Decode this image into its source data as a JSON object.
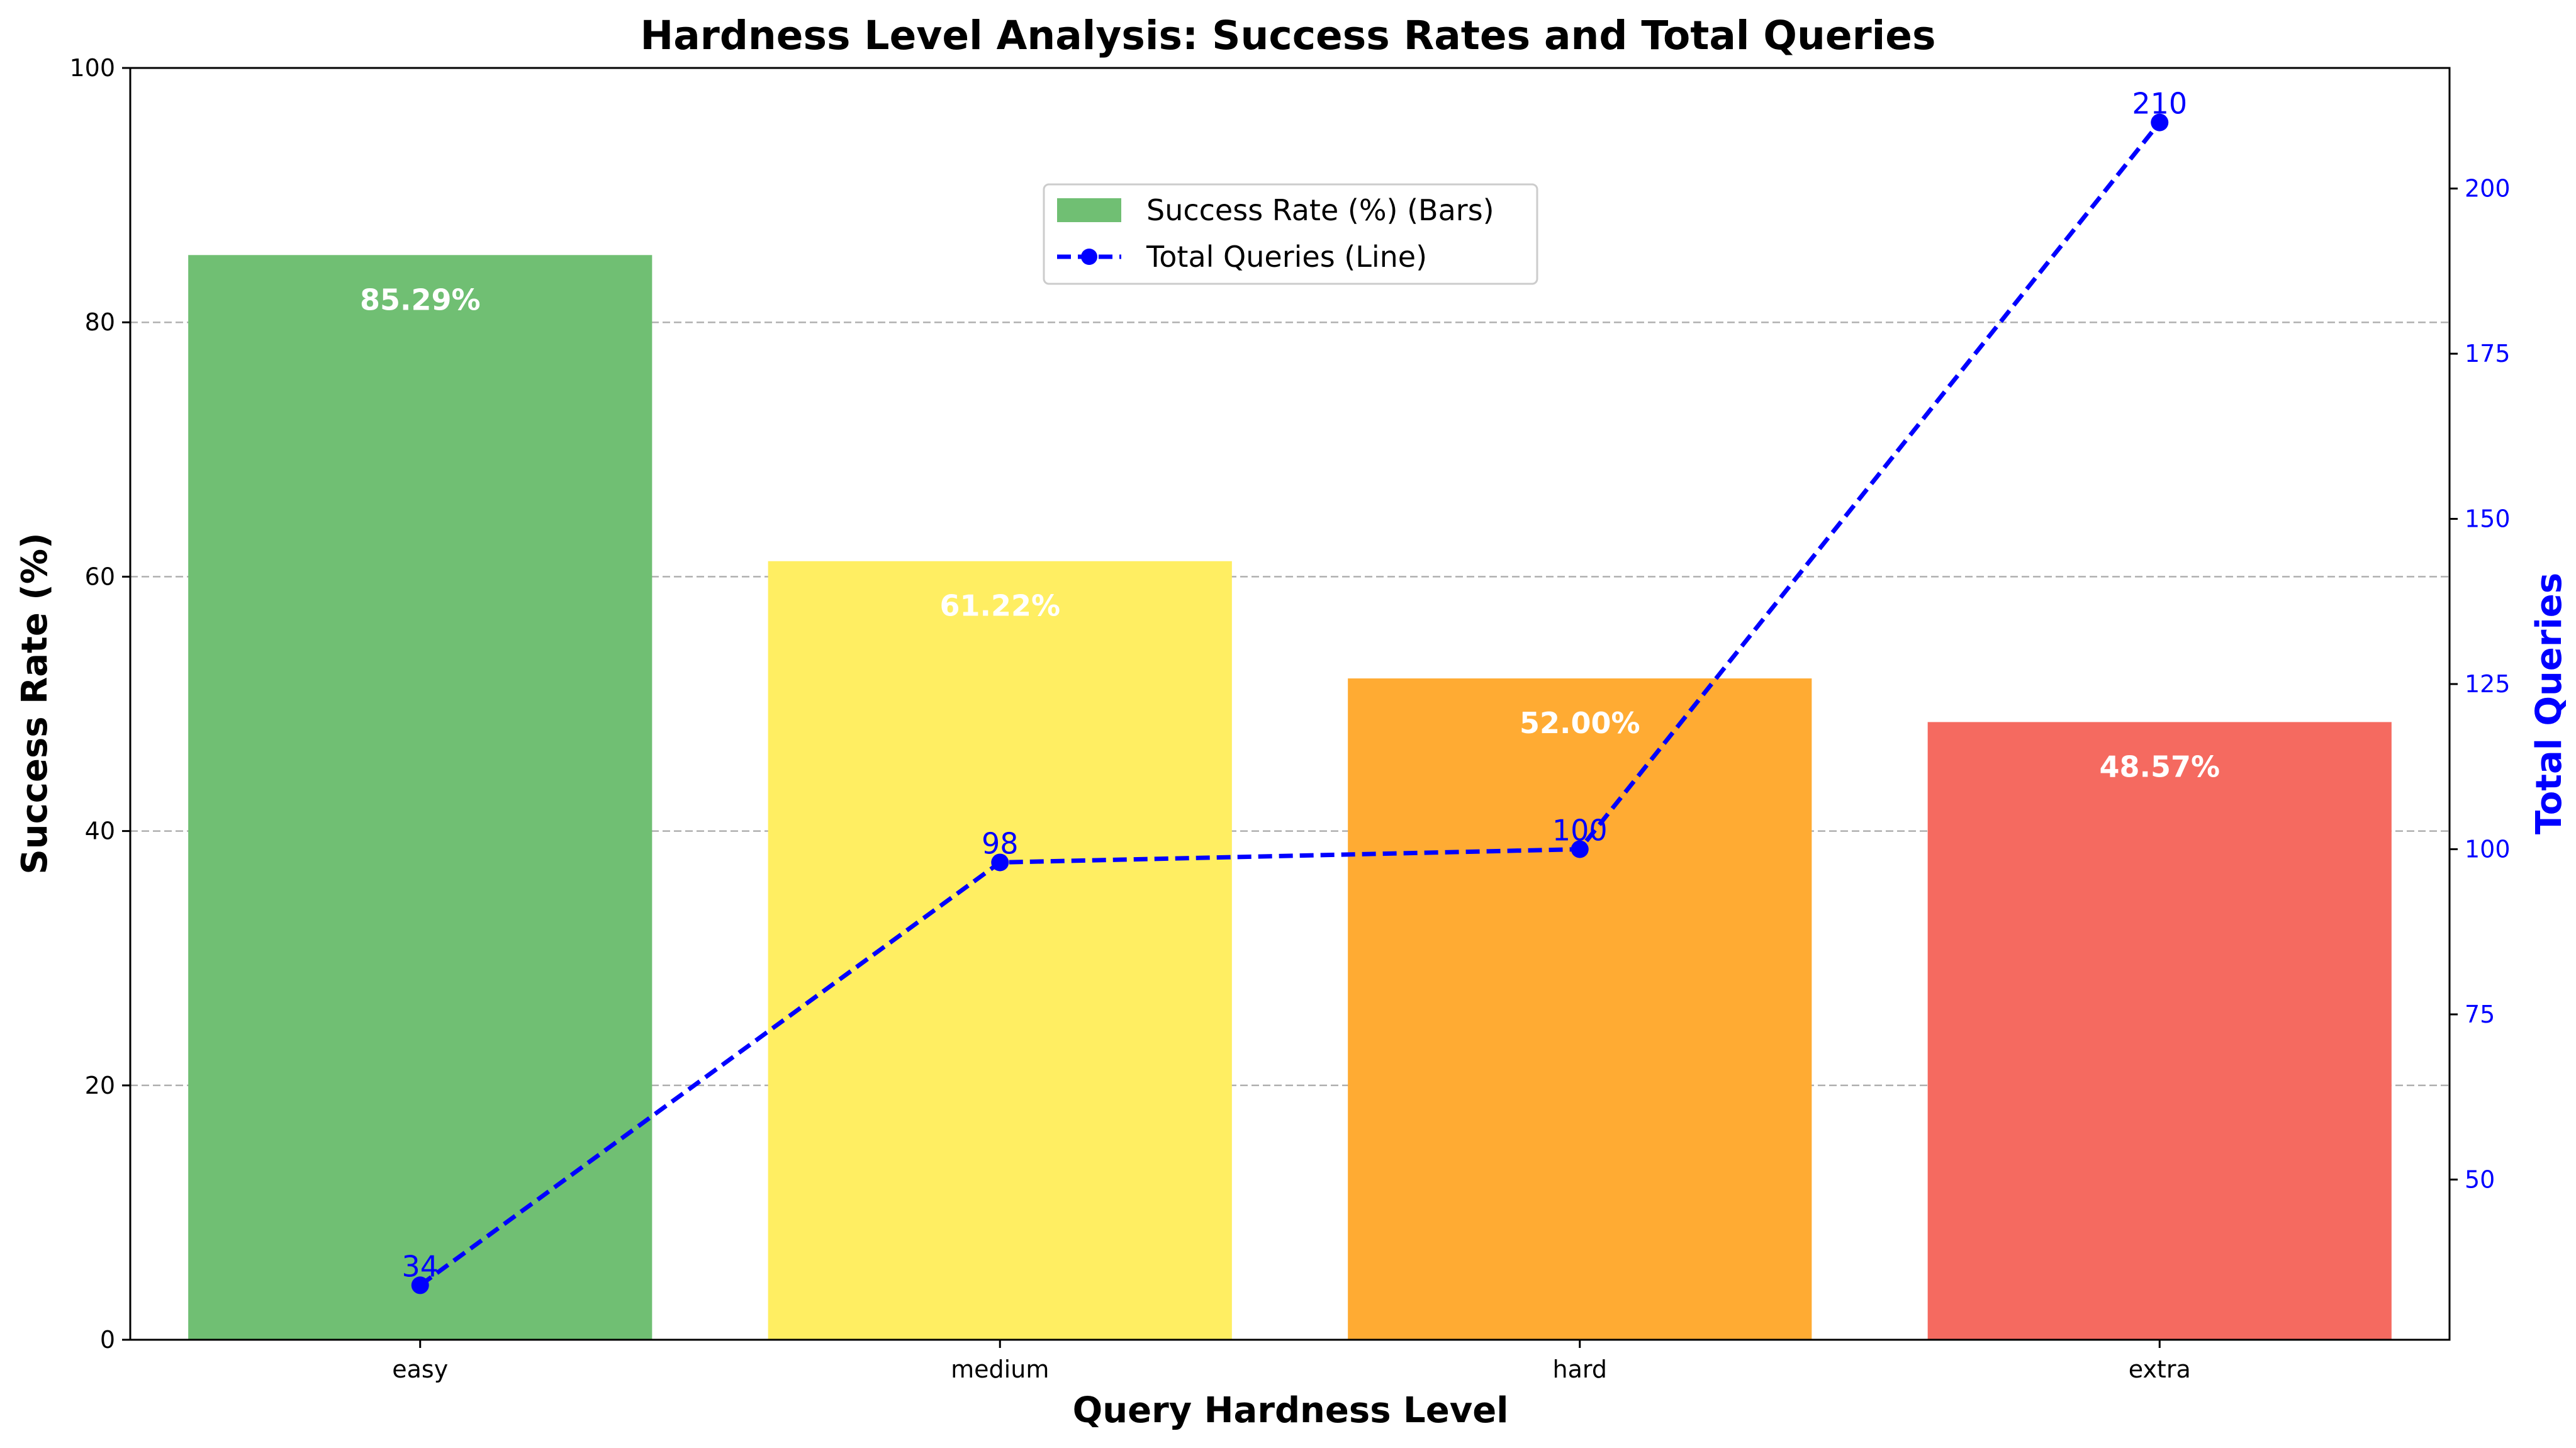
{
  "chart_data": {
    "type": "bar",
    "title": "Hardness Level Analysis: Success Rates and Total Queries",
    "xlabel": "Query Hardness Level",
    "ylabel": "Success Rate (%)",
    "y2label": "Total Queries",
    "categories": [
      "easy",
      "medium",
      "hard",
      "extra"
    ],
    "bar_colors": [
      "#70bf73",
      "#ffee62",
      "#ffab33",
      "#f56a60"
    ],
    "series": [
      {
        "name": "Success Rate (%) (Bars)",
        "type": "bar",
        "axis": "left",
        "values": [
          85.29,
          61.22,
          52.0,
          48.57
        ],
        "labels": [
          "85.29%",
          "61.22%",
          "52.00%",
          "48.57%"
        ],
        "color": "#70bf73"
      },
      {
        "name": "Total Queries (Line)",
        "type": "line",
        "axis": "right",
        "values": [
          34,
          98,
          100,
          210
        ],
        "labels": [
          "34",
          "98",
          "100",
          "210"
        ],
        "color": "#0000ff",
        "linestyle": "dashed",
        "marker": "circle"
      }
    ],
    "ylim": [
      0,
      100
    ],
    "yticks": [
      0,
      20,
      40,
      60,
      80,
      100
    ],
    "y2lim": [
      25.75,
      218.25
    ],
    "y2ticks": [
      50,
      75,
      100,
      125,
      150,
      175,
      200
    ],
    "grid": "horizontal-dashed",
    "legend_position": "upper-center"
  }
}
